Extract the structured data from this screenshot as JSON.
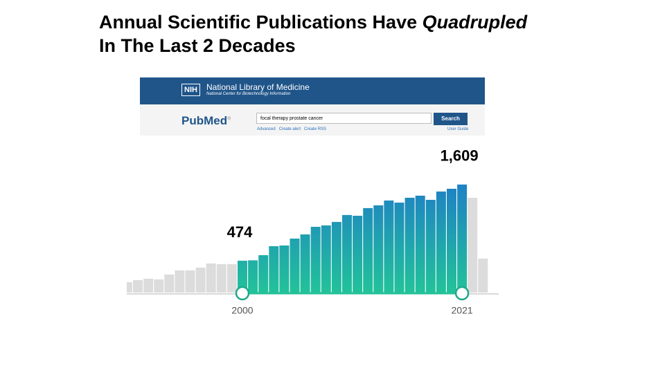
{
  "slide_title": {
    "line1": "Annual Scientific Publications Have",
    "emphasis": "Quadrupled",
    "line2": "In The Last 2 Decades"
  },
  "pubmed": {
    "nih": "NIH",
    "org": "National Library of Medicine",
    "suborg": "National Center for Biotechnology Information",
    "logo_pub": "Pub",
    "logo_med": "Med",
    "logo_mark": "®",
    "query": "focal therapy prostate cancer",
    "button": "Search",
    "links": [
      "Advanced",
      "Create alert",
      "Create RSS"
    ],
    "user_guide": "User Guide"
  },
  "chart_data": {
    "type": "bar",
    "categories": [
      null,
      null,
      null,
      null,
      null,
      null,
      null,
      null,
      null,
      null,
      null,
      "2000",
      null,
      null,
      null,
      null,
      null,
      null,
      null,
      null,
      null,
      null,
      null,
      null,
      null,
      null,
      null,
      null,
      null,
      null,
      null,
      null,
      "2021",
      null,
      null
    ],
    "values": [
      155,
      186,
      206,
      196,
      268,
      330,
      330,
      371,
      433,
      423,
      423,
      474,
      480,
      557,
      691,
      701,
      804,
      866,
      979,
      1000,
      1052,
      1155,
      1144,
      1258,
      1299,
      1371,
      1340,
      1412,
      1443,
      1381,
      1505,
      1546,
      1609,
      1412,
      505
    ],
    "value_labels": [
      null,
      null,
      null,
      null,
      null,
      null,
      null,
      null,
      null,
      null,
      null,
      "474",
      null,
      null,
      null,
      null,
      null,
      null,
      null,
      null,
      null,
      null,
      null,
      null,
      null,
      null,
      null,
      null,
      null,
      null,
      null,
      null,
      "1,609",
      null,
      null
    ],
    "ylim": [
      0,
      1700
    ],
    "color": "#dcdcdc",
    "highlight_gradient": [
      "#22c29a",
      "#1e7dc6"
    ]
  }
}
